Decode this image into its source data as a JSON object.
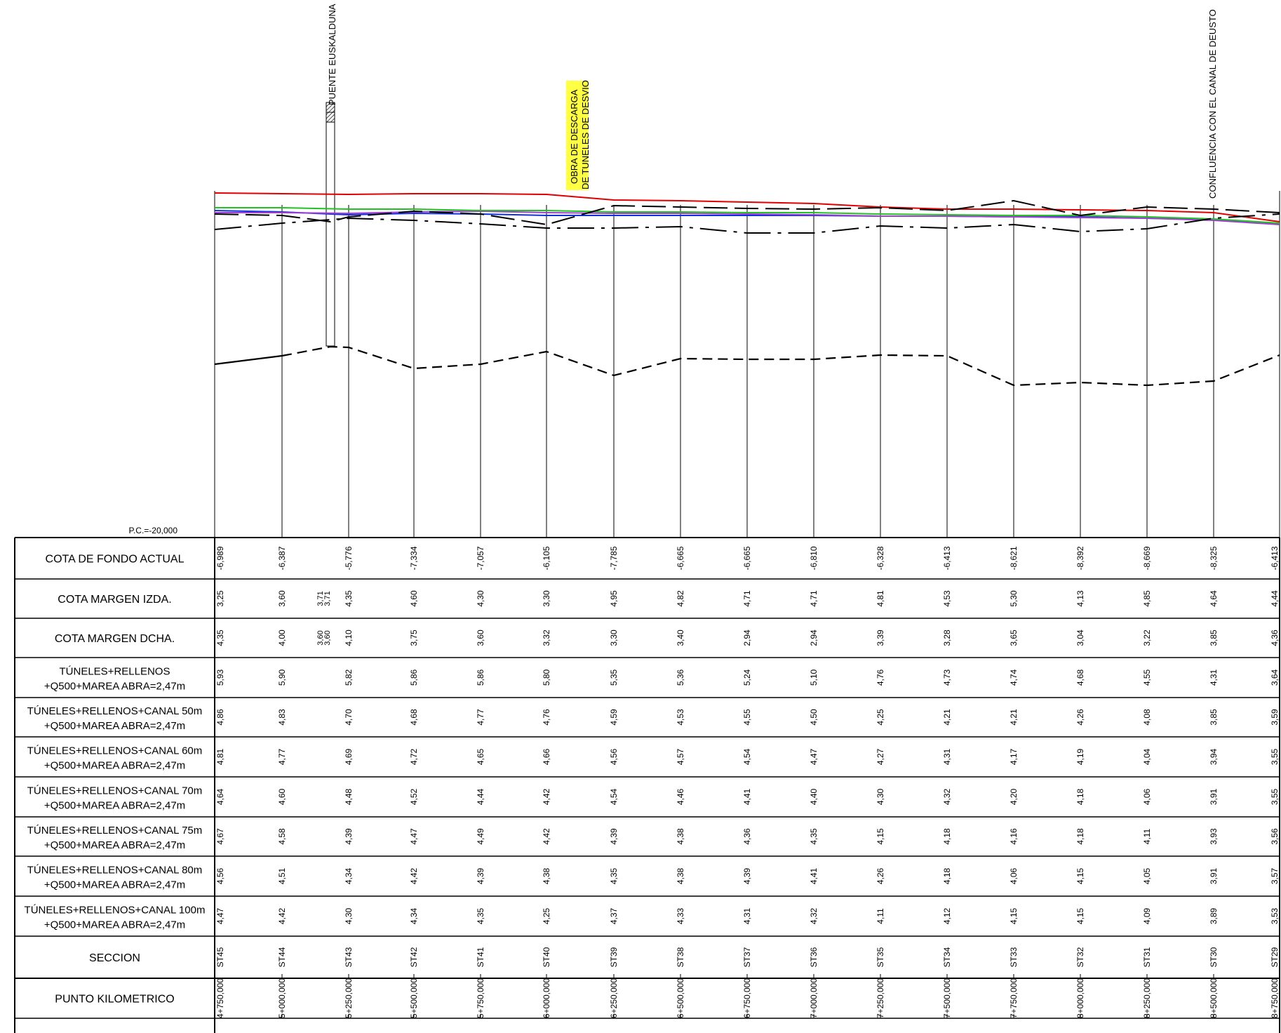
{
  "annotations": {
    "bridge": "PUENTE EUSKALDUNA",
    "discharge_line1": "OBRA DE DESCARGA",
    "discharge_line2": "DE TUNELES DE DESVIO",
    "confluence": "CONFLUENCIA CON EL CANAL DE DEUSTO",
    "datum": "P.C.=-20,000"
  },
  "colors": {
    "red": "#e00000",
    "green": "#22c222",
    "violet": "#a040d0",
    "blue": "#1030e0",
    "highlight": "#ffff44"
  },
  "table": {
    "rows": [
      {
        "key": "cota_fondo",
        "label1": "COTA DE FONDO ACTUAL",
        "label2": "",
        "values": [
          "-6,989",
          "-6,387",
          "-5,776",
          "-7,334",
          "-7,057",
          "-6,105",
          "-7,785",
          "-6,665",
          "-6,665",
          "-6,810",
          "-6,328",
          "-6,413",
          "-8,621",
          "-8,392",
          "-8,669",
          "-8,325",
          "-6,413"
        ]
      },
      {
        "key": "margen_izda",
        "label1": "COTA MARGEN IZDA.",
        "label2": "",
        "values": [
          "3,25",
          "3,60",
          "4,35",
          "4,60",
          "4,30",
          "3,30",
          "4,95",
          "4,82",
          "4,71",
          "4,71",
          "4,81",
          "4,53",
          "5,30",
          "4,13",
          "4,85",
          "4,64",
          "4,44"
        ]
      },
      {
        "key": "margen_dcha",
        "label1": "COTA MARGEN DCHA.",
        "label2": "",
        "values": [
          "4,35",
          "4,00",
          "4,10",
          "3,75",
          "3,60",
          "3,32",
          "3,30",
          "3,40",
          "2,94",
          "2,94",
          "3,39",
          "3,28",
          "3,65",
          "3,04",
          "3,22",
          "3,85",
          "4,36"
        ]
      },
      {
        "key": "tuneles",
        "label1": "TÚNELES+RELLENOS",
        "label2": "+Q500+MAREA ABRA=2,47m",
        "values": [
          "5,93",
          "5,90",
          "5,82",
          "5,86",
          "5,86",
          "5,80",
          "5,35",
          "5,36",
          "5,24",
          "5,10",
          "4,76",
          "4,73",
          "4,74",
          "4,68",
          "4,55",
          "4,31",
          "3,64"
        ]
      },
      {
        "key": "canal50",
        "label1": "TÚNELES+RELLENOS+CANAL 50m",
        "label2": "+Q500+MAREA ABRA=2,47m",
        "values": [
          "4,86",
          "4,83",
          "4,70",
          "4,68",
          "4,77",
          "4,76",
          "4,59",
          "4,53",
          "4,55",
          "4,50",
          "4,25",
          "4,21",
          "4,21",
          "4,26",
          "4,08",
          "3,85",
          "3,59"
        ]
      },
      {
        "key": "canal60",
        "label1": "TÚNELES+RELLENOS+CANAL 60m",
        "label2": "+Q500+MAREA ABRA=2,47m",
        "values": [
          "4,81",
          "4,77",
          "4,69",
          "4,72",
          "4,65",
          "4,66",
          "4,56",
          "4,57",
          "4,54",
          "4,47",
          "4,27",
          "4,31",
          "4,17",
          "4,19",
          "4,04",
          "3,94",
          "3,55"
        ]
      },
      {
        "key": "canal70",
        "label1": "TÚNELES+RELLENOS+CANAL 70m",
        "label2": "+Q500+MAREA ABRA=2,47m",
        "values": [
          "4,64",
          "4,60",
          "4,48",
          "4,52",
          "4,44",
          "4,42",
          "4,54",
          "4,46",
          "4,41",
          "4,40",
          "4,30",
          "4,32",
          "4,20",
          "4,18",
          "4,06",
          "3,91",
          "3,55"
        ]
      },
      {
        "key": "canal75",
        "label1": "TÚNELES+RELLENOS+CANAL 75m",
        "label2": "+Q500+MAREA ABRA=2,47m",
        "values": [
          "4,67",
          "4,58",
          "4,39",
          "4,47",
          "4,49",
          "4,42",
          "4,39",
          "4,38",
          "4,36",
          "4,35",
          "4,15",
          "4,18",
          "4,16",
          "4,18",
          "4,11",
          "3,93",
          "3,56"
        ]
      },
      {
        "key": "canal80",
        "label1": "TÚNELES+RELLENOS+CANAL 80m",
        "label2": "+Q500+MAREA ABRA=2,47m",
        "values": [
          "4,56",
          "4,51",
          "4,34",
          "4,42",
          "4,39",
          "4,38",
          "4,35",
          "4,38",
          "4,39",
          "4,41",
          "4,26",
          "4,18",
          "4,06",
          "4,15",
          "4,05",
          "3,91",
          "3,57"
        ]
      },
      {
        "key": "canal100",
        "label1": "TÚNELES+RELLENOS+CANAL 100m",
        "label2": "+Q500+MAREA ABRA=2,47m",
        "values": [
          "4,47",
          "4,42",
          "4,30",
          "4,34",
          "4,35",
          "4,25",
          "4,37",
          "4,33",
          "4,31",
          "4,32",
          "4,11",
          "4,12",
          "4,15",
          "4,15",
          "4,09",
          "3,89",
          "3,53"
        ]
      },
      {
        "key": "seccion",
        "label1": "SECCION",
        "label2": "",
        "values": [
          "ST45",
          "ST44",
          "ST43",
          "ST42",
          "ST41",
          "ST40",
          "ST39",
          "ST38",
          "ST37",
          "ST36",
          "ST35",
          "ST34",
          "ST33",
          "ST32",
          "ST31",
          "ST30",
          "ST29"
        ]
      },
      {
        "key": "pk",
        "label1": "PUNTO KILOMETRICO",
        "label2": "",
        "values": [
          "4+750,000",
          "5+000,000",
          "5+250,000",
          "5+500,000",
          "5+750,000",
          "6+000,000",
          "6+250,000",
          "6+500,000",
          "6+750,000",
          "7+000,000",
          "7+250,000",
          "7+500,000",
          "7+750,000",
          "8+000,000",
          "8+250,000",
          "8+500,000",
          "8+750,000"
        ]
      }
    ],
    "bridge_izda": [
      "3,71",
      "3,71"
    ],
    "bridge_dcha": [
      "3,60",
      "3,60"
    ]
  }
}
